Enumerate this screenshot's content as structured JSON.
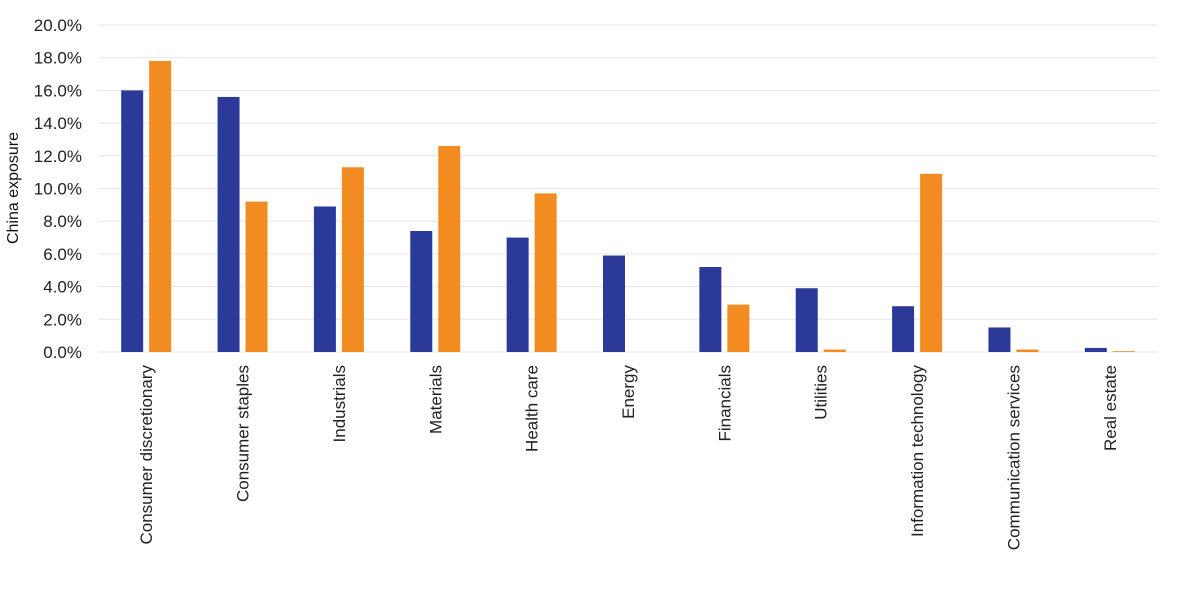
{
  "chart_data": {
    "type": "bar",
    "ylabel": "China exposure",
    "ylim": [
      0,
      20
    ],
    "yticks": [
      "0.0%",
      "2.0%",
      "4.0%",
      "6.0%",
      "8.0%",
      "10.0%",
      "12.0%",
      "14.0%",
      "16.0%",
      "18.0%",
      "20.0%"
    ],
    "categories": [
      "Consumer discretionary",
      "Consumer staples",
      "Industrials",
      "Materials",
      "Health care",
      "Energy",
      "Financials",
      "Utilities",
      "Information technology",
      "Communication services",
      "Real estate"
    ],
    "series": [
      {
        "color": "#2b3a98",
        "values": [
          16.0,
          15.6,
          8.9,
          7.4,
          7.0,
          5.9,
          5.2,
          3.9,
          2.8,
          1.5,
          0.25
        ]
      },
      {
        "color": "#f28c20",
        "values": [
          17.8,
          9.2,
          11.3,
          12.6,
          9.7,
          0.0,
          2.9,
          0.15,
          10.9,
          0.15,
          0.05
        ]
      }
    ],
    "grid": true
  }
}
